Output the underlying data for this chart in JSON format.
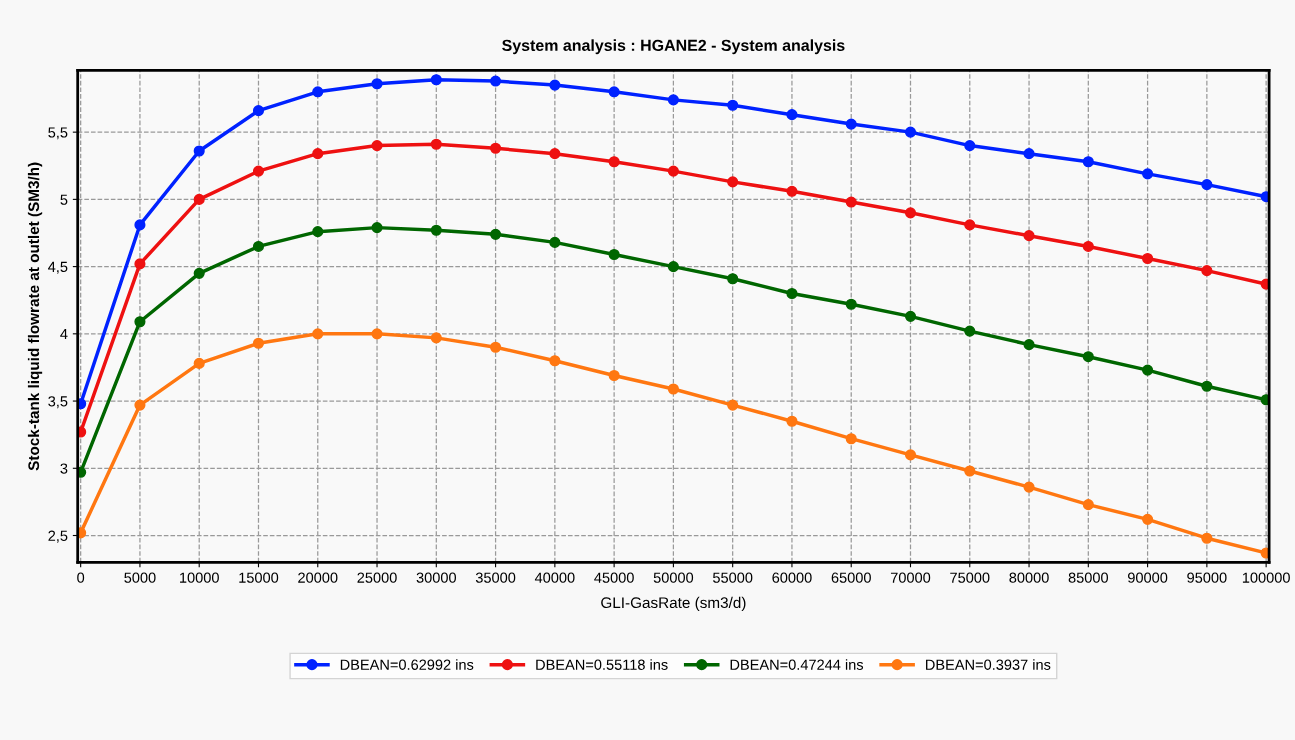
{
  "chart_data": {
    "type": "line",
    "title": "System analysis : HGANE2 - System analysis",
    "xlabel": "GLI-GasRate (sm3/d)",
    "ylabel": "Stock-tank liquid flowrate at outlet (SM3/h)",
    "x": [
      0,
      5000,
      10000,
      15000,
      20000,
      25000,
      30000,
      35000,
      40000,
      45000,
      50000,
      55000,
      60000,
      65000,
      70000,
      75000,
      80000,
      85000,
      90000,
      95000,
      100000
    ],
    "series": [
      {
        "name": "DBEAN=0.62992 ins",
        "color": "#0022ff",
        "values": [
          3.48,
          4.81,
          5.36,
          5.66,
          5.8,
          5.86,
          5.89,
          5.88,
          5.85,
          5.8,
          5.74,
          5.7,
          5.63,
          5.56,
          5.5,
          5.4,
          5.34,
          5.28,
          5.19,
          5.11,
          5.02
        ]
      },
      {
        "name": "DBEAN=0.55118 ins",
        "color": "#ee1111",
        "values": [
          3.27,
          4.52,
          5.0,
          5.21,
          5.34,
          5.4,
          5.41,
          5.38,
          5.34,
          5.28,
          5.21,
          5.13,
          5.06,
          4.98,
          4.9,
          4.81,
          4.73,
          4.65,
          4.56,
          4.47,
          4.37
        ]
      },
      {
        "name": "DBEAN=0.47244 ins",
        "color": "#006600",
        "values": [
          2.97,
          4.09,
          4.45,
          4.65,
          4.76,
          4.79,
          4.77,
          4.74,
          4.68,
          4.59,
          4.5,
          4.41,
          4.3,
          4.22,
          4.13,
          4.02,
          3.92,
          3.83,
          3.73,
          3.61,
          3.51
        ]
      },
      {
        "name": "DBEAN=0.3937 ins",
        "color": "#ff7711",
        "values": [
          2.52,
          3.47,
          3.78,
          3.93,
          4.0,
          4.0,
          3.97,
          3.9,
          3.8,
          3.69,
          3.59,
          3.47,
          3.35,
          3.22,
          3.1,
          2.98,
          2.86,
          2.73,
          2.62,
          2.48,
          2.37
        ]
      }
    ],
    "xlim": [
      -250,
      100250
    ],
    "xticks": [
      0,
      5000,
      10000,
      15000,
      20000,
      25000,
      30000,
      35000,
      40000,
      45000,
      50000,
      55000,
      60000,
      65000,
      70000,
      75000,
      80000,
      85000,
      90000,
      95000,
      100000
    ],
    "ylim": [
      2.3,
      5.96
    ],
    "yticks": [
      {
        "value": 2.5,
        "label": "2,5"
      },
      3,
      {
        "value": 3.5,
        "label": "3,5"
      },
      4,
      {
        "value": 4.5,
        "label": "4,5"
      },
      5,
      {
        "value": 5.5,
        "label": "5,5"
      }
    ],
    "grid": true,
    "legend": "bottom",
    "marker": "circle",
    "line_style": "solid"
  }
}
